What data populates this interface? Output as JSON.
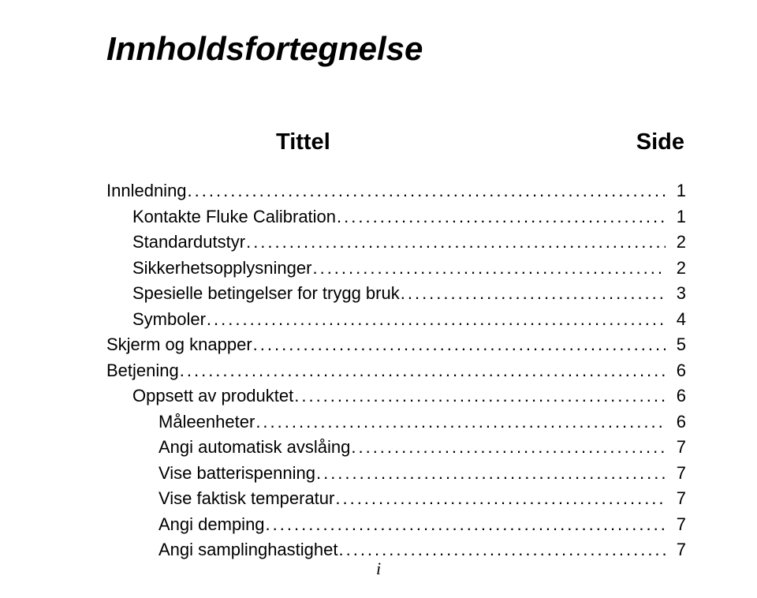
{
  "title": "Innholdsfortegnelse",
  "column_headers": {
    "title": "Tittel",
    "page": "Side"
  },
  "toc": [
    {
      "label": "Innledning",
      "page": "1",
      "indent": 0
    },
    {
      "label": "Kontakte Fluke Calibration",
      "page": "1",
      "indent": 1
    },
    {
      "label": "Standardutstyr",
      "page": "2",
      "indent": 1
    },
    {
      "label": "Sikkerhetsopplysninger",
      "page": "2",
      "indent": 1
    },
    {
      "label": "Spesielle betingelser for trygg bruk",
      "page": "3",
      "indent": 1
    },
    {
      "label": "Symboler",
      "page": "4",
      "indent": 1
    },
    {
      "label": "Skjerm og knapper",
      "page": "5",
      "indent": 0
    },
    {
      "label": "Betjening",
      "page": "6",
      "indent": 0
    },
    {
      "label": "Oppsett av produktet",
      "page": "6",
      "indent": 1
    },
    {
      "label": "Måleenheter",
      "page": "6",
      "indent": 2
    },
    {
      "label": "Angi automatisk avslåing",
      "page": "7",
      "indent": 2
    },
    {
      "label": "Vise batterispenning",
      "page": "7",
      "indent": 2
    },
    {
      "label": "Vise faktisk temperatur",
      "page": "7",
      "indent": 2
    },
    {
      "label": "Angi demping",
      "page": "7",
      "indent": 2
    },
    {
      "label": "Angi samplinghastighet",
      "page": "7",
      "indent": 2
    }
  ],
  "page_roman": "i",
  "style": {
    "dot_leader": "."
  }
}
